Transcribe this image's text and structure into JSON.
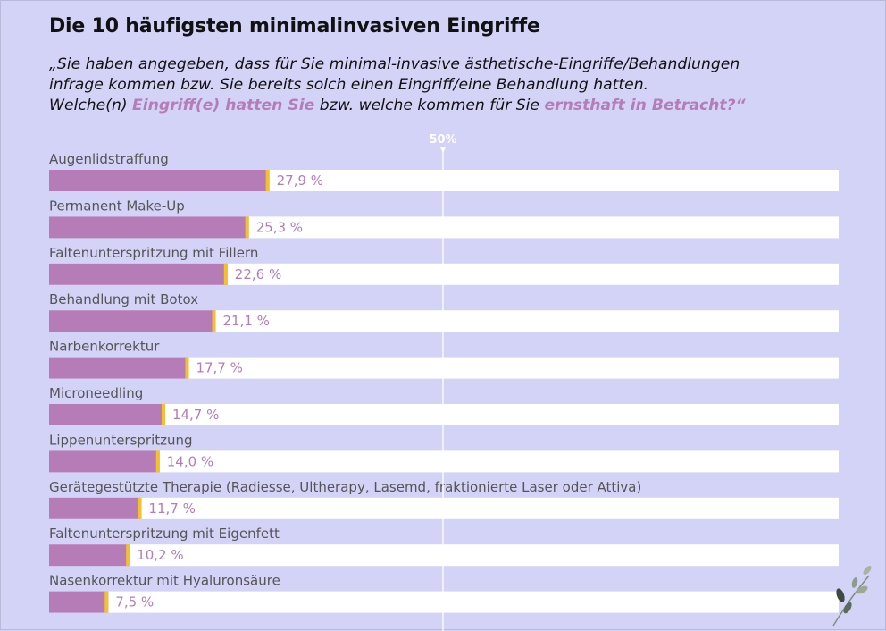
{
  "title": "Die 10 häufigsten minimalinvasiven Eingriffe",
  "subtitle": {
    "line1": "„Sie haben angegeben, dass für Sie minimal-invasive ästhetische-Eingriffe/Behandlungen",
    "line2": "infrage kommen bzw. Sie bereits solch einen Eingriff/eine Behandlung hatten.",
    "line3_a": "Welche(n) ",
    "line3_hl1": "Eingriff(e) hatten Sie",
    "line3_b": " bzw. welche kommen für Sie ",
    "line3_hl2": "ernsthaft in Betracht?“"
  },
  "colors": {
    "background": "#d3d3f7",
    "bar": "#b57cb8",
    "bar_tip": "#f5c02e",
    "track": "#ffffff",
    "value_label": "#b57cb8",
    "reference_line": "#ffffff"
  },
  "chart_data": {
    "type": "bar",
    "orientation": "horizontal",
    "categories": [
      "Augenlidstraffung",
      "Permanent Make-Up",
      "Faltenunterspritzung mit Fillern",
      "Behandlung mit Botox",
      "Narbenkorrektur",
      "Microneedling",
      "Lippenunterspritzung",
      "Gerätegestützte Therapie (Radiesse, Ultherapy, Lasemd, fraktionierte Laser oder Attiva)",
      "Faltenunterspritzung mit Eigenfett",
      "Nasenkorrektur mit Hyaluronsäure"
    ],
    "values": [
      27.9,
      25.3,
      22.6,
      21.1,
      17.7,
      14.7,
      14.0,
      11.7,
      10.2,
      7.5
    ],
    "value_labels": [
      "27,9 %",
      "25,3 %",
      "22,6 %",
      "21,1 %",
      "17,7 %",
      "14,7 %",
      "14,0 %",
      "11,7 %",
      "10,2 %",
      "7,5 %"
    ],
    "xlim": [
      0,
      100
    ],
    "reference_line": {
      "value": 50,
      "label": "50%"
    },
    "grid": false,
    "legend": "none"
  },
  "decoration": {
    "icon": "leaf-branch-icon"
  }
}
